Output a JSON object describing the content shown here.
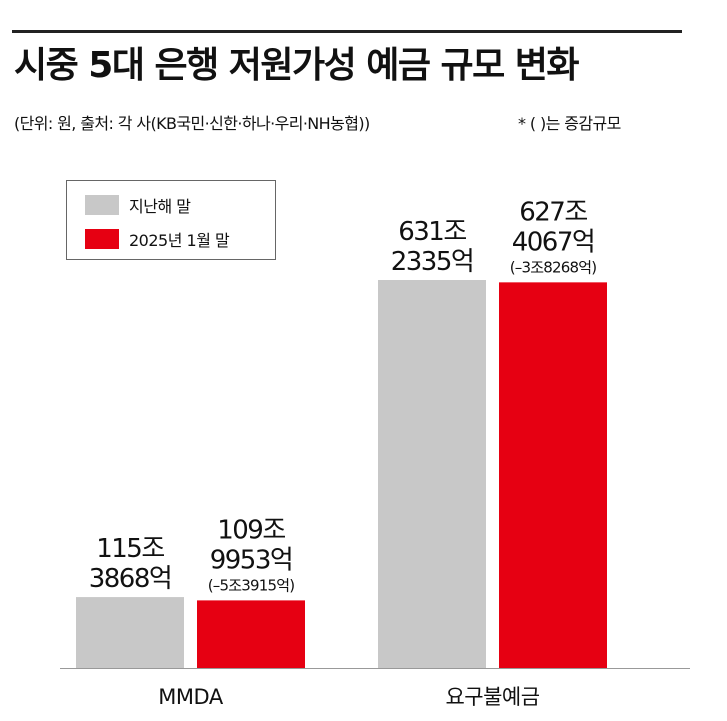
{
  "title": "시중 5대 은행 저원가성 예금 규모 변화",
  "subtitle": "(단위: 원, 출처: 각 사(KB국민·신한·하나·우리·NH농협))",
  "note": "* ( )는 증감규모",
  "colors": {
    "prev": "#c8c8c8",
    "curr": "#e60012",
    "axis": "#999999"
  },
  "chart_data": {
    "type": "bar",
    "title": "시중 5대 은행 저원가성 예금 규모 변화",
    "xlabel": "",
    "ylabel": "",
    "legend_position": "top-left",
    "grid": false,
    "categories": [
      "MMDA",
      "요구불예금"
    ],
    "series": [
      {
        "name": "지난해 말",
        "values": [
          115.3868,
          631.2335
        ],
        "labels": [
          "115조|3868억",
          "631조|2335억"
        ]
      },
      {
        "name": "2025년 1월 말",
        "values": [
          109.9953,
          627.4067
        ],
        "labels": [
          "109조|9953억",
          "627조|4067억"
        ],
        "changes": [
          "(–5조3915억)",
          "(–3조8268억)"
        ]
      }
    ],
    "unit": "조원",
    "ylim": [
      0,
      720
    ]
  }
}
